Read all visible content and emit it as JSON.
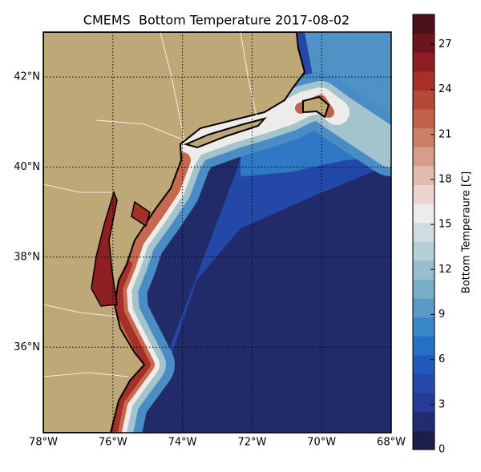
{
  "chart_data": {
    "type": "contour-map",
    "title": "CMEMS  Bottom Temperature 2017-08-02",
    "xlim": [
      -78,
      -68
    ],
    "xticks": [
      {
        "value": -78,
        "label": "78°W"
      },
      {
        "value": -76,
        "label": "76°W"
      },
      {
        "value": -74,
        "label": "74°W"
      },
      {
        "value": -72,
        "label": "72°W"
      },
      {
        "value": -70,
        "label": "70°W"
      },
      {
        "value": -68,
        "label": "68°W"
      }
    ],
    "ylim": [
      34.1,
      43.0
    ],
    "yticks": [
      {
        "value": 36,
        "label": "36°N"
      },
      {
        "value": 38,
        "label": "38°N"
      },
      {
        "value": 40,
        "label": "40°N"
      },
      {
        "value": 42,
        "label": "42°N"
      }
    ],
    "grid": true,
    "land_color": "#bea878",
    "colorbar": {
      "label": "Bottom Temperaure [C]",
      "lim": [
        0,
        29
      ],
      "ticks": [
        0,
        3,
        6,
        9,
        12,
        15,
        18,
        21,
        24,
        27
      ],
      "colors": [
        "#1c1f4a",
        "#232c72",
        "#263b95",
        "#2449ab",
        "#1f5abc",
        "#2470c6",
        "#3a86c8",
        "#5a9ac6",
        "#78adc8",
        "#97bfcb",
        "#b4cfd6",
        "#d0dde0",
        "#eeeceb",
        "#ead6cf",
        "#dfbcae",
        "#d69e89",
        "#cc8066",
        "#c1634a",
        "#b44a36",
        "#a43027",
        "#8c1e24",
        "#6e1620",
        "#4c1018"
      ]
    }
  }
}
